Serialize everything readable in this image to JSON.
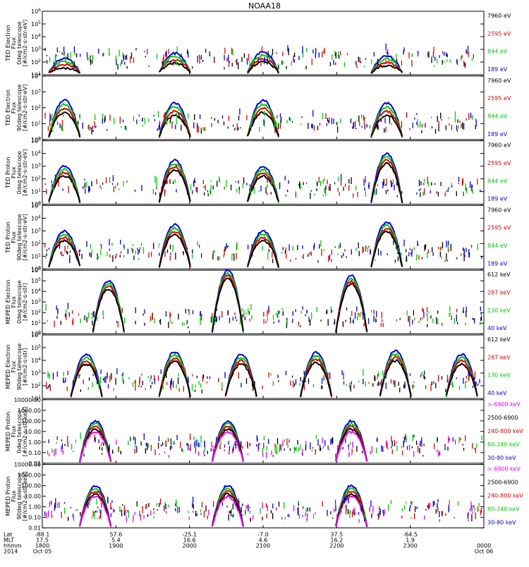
{
  "figure": {
    "title": "NOAA18",
    "footer": {
      "row_labels": [
        "Lat",
        "MLT",
        "hhmm",
        "2014"
      ],
      "lat": [
        "-88.1",
        "57.6",
        "-25.1",
        "-7.0",
        "37.5",
        "-64.5",
        ""
      ],
      "mlt": [
        "17.5",
        "5.4",
        "16.6",
        "4.6",
        "16.2",
        "1.9",
        ""
      ],
      "hhmm": [
        "1800",
        "1900",
        "2000",
        "2100",
        "2200",
        "2300",
        "0000"
      ],
      "date": [
        "Oct 05",
        "",
        "",
        "",
        "",
        "",
        "Oct 06"
      ]
    }
  },
  "chart_data": [
    {
      "type": "scatter",
      "panel": "ted-electron-0",
      "ylabel": "TED Electron Flux 0deg telescope [#/cm2-s-str-eV]",
      "ylog": true,
      "ylim": [
        10,
        1000000
      ],
      "yticks": [
        "10^1",
        "10^2",
        "10^3",
        "10^4",
        "10^5",
        "10^6"
      ],
      "series": [
        {
          "name": "7960 eV",
          "color": "#000000"
        },
        {
          "name": "2595 eV",
          "color": "#dd0000"
        },
        {
          "name": "844 eV",
          "color": "#00cc00"
        },
        {
          "name": "189 eV",
          "color": "#0000dd"
        }
      ],
      "passes": [
        0.05,
        0.3,
        0.5,
        0.78
      ],
      "peaks": [
        200,
        500,
        600,
        300
      ]
    },
    {
      "type": "scatter",
      "panel": "ted-electron-90",
      "ylabel": "TED Electron Flux 90deg telescope [#/cm2-s-str-eV]",
      "ylog": true,
      "ylim": [
        1,
        10000
      ],
      "yticks": [
        "10^0",
        "10^1",
        "10^2",
        "10^3",
        "10^4"
      ],
      "series": [
        {
          "name": "7960 eV",
          "color": "#000000"
        },
        {
          "name": "2595 eV",
          "color": "#dd0000"
        },
        {
          "name": "844 eV",
          "color": "#00cc00"
        },
        {
          "name": "189 eV",
          "color": "#0000dd"
        }
      ],
      "passes": [
        0.05,
        0.3,
        0.5,
        0.78
      ],
      "peaks": [
        300,
        200,
        300,
        200
      ]
    },
    {
      "type": "scatter",
      "panel": "ted-proton-0",
      "ylabel": "TED Proton Flux 0deg telescope [#/cm2-s-str-eV]",
      "ylog": true,
      "ylim": [
        1,
        100000
      ],
      "yticks": [
        "10^0",
        "10^1",
        "10^2",
        "10^3",
        "10^4",
        "10^5"
      ],
      "series": [
        {
          "name": "7960 eV",
          "color": "#000000"
        },
        {
          "name": "2595 eV",
          "color": "#dd0000"
        },
        {
          "name": "844 eV",
          "color": "#00cc00"
        },
        {
          "name": "189 eV",
          "color": "#0000dd"
        }
      ],
      "passes": [
        0.05,
        0.3,
        0.5,
        0.78
      ],
      "peaks": [
        1000,
        3000,
        1000,
        10000
      ]
    },
    {
      "type": "scatter",
      "panel": "ted-proton-90",
      "ylabel": "TED Proton Flux 90deg telescope [#/cm2-s-str-eV]",
      "ylog": true,
      "ylim": [
        1,
        100000
      ],
      "yticks": [
        "10^0",
        "10^1",
        "10^2",
        "10^3",
        "10^4",
        "10^5"
      ],
      "series": [
        {
          "name": "7960 eV",
          "color": "#000000"
        },
        {
          "name": "2595 eV",
          "color": "#dd0000"
        },
        {
          "name": "844 eV",
          "color": "#00cc00"
        },
        {
          "name": "189 eV",
          "color": "#0000dd"
        }
      ],
      "passes": [
        0.05,
        0.3,
        0.5,
        0.78
      ],
      "peaks": [
        1000,
        3000,
        1000,
        5000
      ]
    },
    {
      "type": "scatter",
      "panel": "meped-electron-0",
      "ylabel": "MEPED Electron Flux 0deg telescope [#/cm2-s-str]",
      "ylog": true,
      "ylim": [
        1,
        1000000
      ],
      "yticks": [
        "10^0",
        "10^1",
        "10^2",
        "10^3",
        "10^4",
        "10^5",
        "10^6"
      ],
      "series": [
        {
          "name": "612 keV",
          "color": "#000000"
        },
        {
          "name": "287 keV",
          "color": "#dd0000"
        },
        {
          "name": "130 keV",
          "color": "#00cc00"
        },
        {
          "name": "40 keV",
          "color": "#0000dd"
        }
      ],
      "passes": [
        0.15,
        0.42,
        0.7
      ],
      "peaks": [
        100000,
        1000000,
        300000
      ]
    },
    {
      "type": "scatter",
      "panel": "meped-electron-90",
      "ylabel": "MEPED Electron Flux 90deg telescope [#/cm2-s-str]",
      "ylog": true,
      "ylim": [
        10,
        1000000
      ],
      "yticks": [
        "10^1",
        "10^2",
        "10^3",
        "10^4",
        "10^5",
        "10^6"
      ],
      "series": [
        {
          "name": "612 keV",
          "color": "#000000"
        },
        {
          "name": "287 keV",
          "color": "#dd0000"
        },
        {
          "name": "130 keV",
          "color": "#00cc00"
        },
        {
          "name": "40 keV",
          "color": "#0000dd"
        }
      ],
      "passes": [
        0.1,
        0.3,
        0.45,
        0.62,
        0.8,
        0.95
      ],
      "peaks": [
        30000,
        50000,
        30000,
        40000,
        60000,
        30000
      ]
    },
    {
      "type": "scatter",
      "panel": "meped-proton-0",
      "ylabel": "MEPED Proton Flux 0deg telescope [#/cm2-s-str-keV]",
      "ylog": true,
      "ylim": [
        0.01,
        10000
      ],
      "yticks": [
        "0.01",
        "0.10",
        "1.00",
        "10.00",
        "100.00",
        "1000.00",
        "10000.00"
      ],
      "series": [
        {
          "name": "> 6900 keV",
          "color": "#ee00ee"
        },
        {
          "name": "2500-6900",
          "color": "#000000"
        },
        {
          "name": "240-800 keV",
          "color": "#dd0000"
        },
        {
          "name": "80-240 keV",
          "color": "#00cc00"
        },
        {
          "name": "30-80 keV",
          "color": "#0000dd"
        }
      ],
      "passes": [
        0.12,
        0.42,
        0.7
      ],
      "peaks": [
        100,
        100,
        100
      ]
    },
    {
      "type": "scatter",
      "panel": "meped-proton-90",
      "ylabel": "MEPED Proton Flux 90deg telescope [#/cm2-s-str-keV]",
      "ylog": true,
      "ylim": [
        0.01,
        10000
      ],
      "yticks": [
        "0.01",
        "0.10",
        "1.00",
        "10.00",
        "100.00",
        "1000.00",
        "10000.00"
      ],
      "series": [
        {
          "name": "> 6900 keV",
          "color": "#ee00ee"
        },
        {
          "name": "2500-6900",
          "color": "#000000"
        },
        {
          "name": "240-800 keV",
          "color": "#dd0000"
        },
        {
          "name": "80-240 keV",
          "color": "#00cc00"
        },
        {
          "name": "30-80 keV",
          "color": "#0000dd"
        }
      ],
      "passes": [
        0.12,
        0.42,
        0.7
      ],
      "peaks": [
        100,
        100,
        100
      ]
    }
  ]
}
